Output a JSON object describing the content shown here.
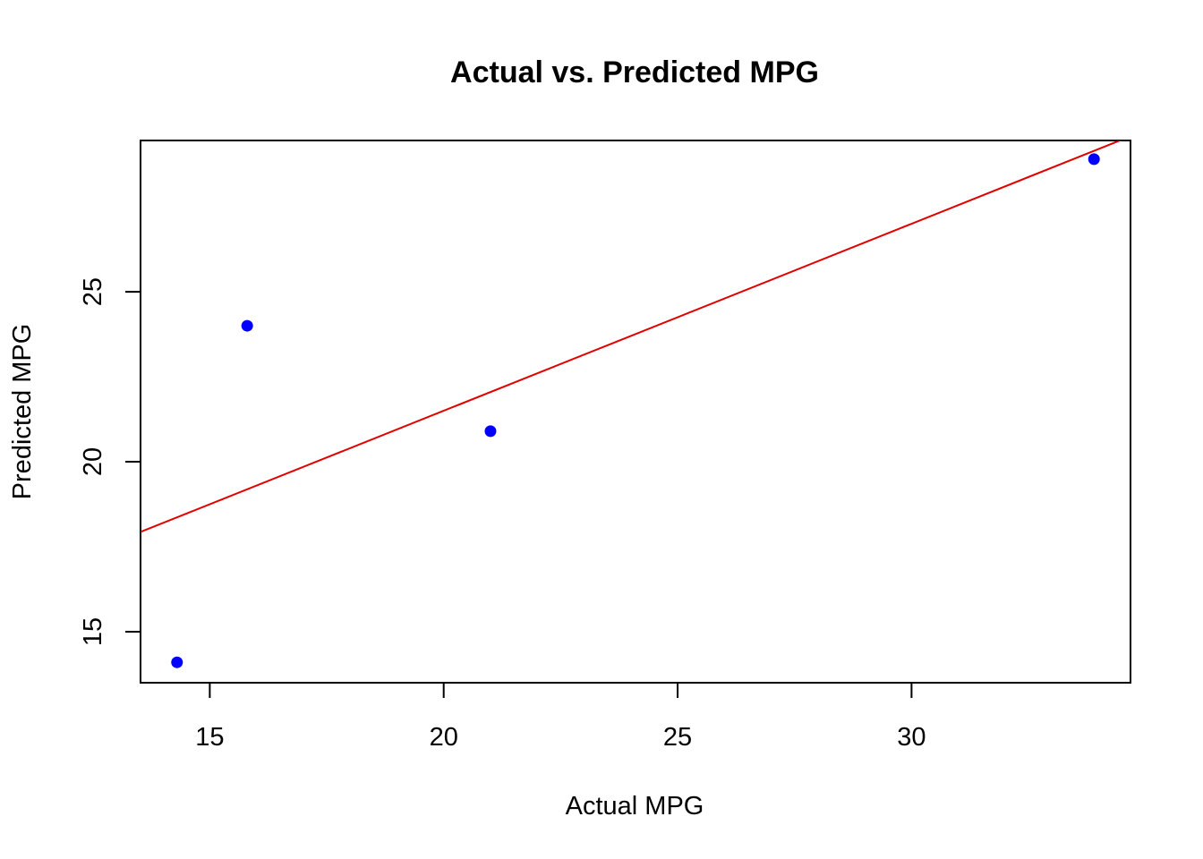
{
  "chart_data": {
    "type": "scatter",
    "title": "Actual vs. Predicted MPG",
    "xlabel": "Actual MPG",
    "ylabel": "Predicted MPG",
    "xlim": [
      13.52,
      34.68
    ],
    "ylim": [
      13.5,
      29.45
    ],
    "x_ticks": [
      15,
      20,
      25,
      30
    ],
    "y_ticks": [
      15,
      20,
      25
    ],
    "x_tick_labels": [
      "15",
      "20",
      "25",
      "30"
    ],
    "y_tick_labels": [
      "15",
      "20",
      "25"
    ],
    "points": [
      {
        "x": 14.3,
        "y": 14.1
      },
      {
        "x": 15.8,
        "y": 24.0
      },
      {
        "x": 21.0,
        "y": 20.9
      },
      {
        "x": 33.9,
        "y": 28.9
      }
    ],
    "fit_line": {
      "intercept": 10.5,
      "slope": 0.55
    },
    "point_color": "#0000ff",
    "line_color": "#e00000",
    "grid": false,
    "legend": "none"
  }
}
